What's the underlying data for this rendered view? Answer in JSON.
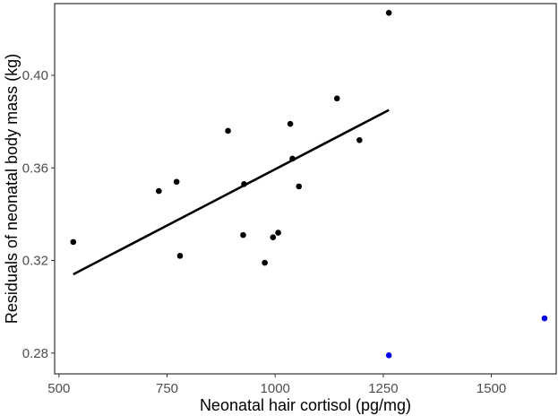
{
  "chart_data": {
    "type": "scatter",
    "title": "",
    "xlabel": "Neonatal hair cortisol (pg/mg)",
    "ylabel": "Residuals of neonatal body mass (kg)",
    "xlim": [
      490,
      1650
    ],
    "ylim": [
      0.271,
      0.431
    ],
    "grid": false,
    "legend": "none",
    "x_ticks": [
      500,
      750,
      1000,
      1250,
      1500
    ],
    "x_tick_labels": [
      "500",
      "750",
      "1000",
      "1250",
      "1500"
    ],
    "y_ticks": [
      0.28,
      0.32,
      0.36,
      0.4
    ],
    "y_tick_labels": [
      "0.28",
      "0.32",
      "0.36",
      "0.40"
    ],
    "series": [
      {
        "color": "#000000",
        "points": [
          {
            "x": 533,
            "y": 0.328
          },
          {
            "x": 731,
            "y": 0.35
          },
          {
            "x": 772,
            "y": 0.354
          },
          {
            "x": 780,
            "y": 0.322
          },
          {
            "x": 891,
            "y": 0.376
          },
          {
            "x": 926,
            "y": 0.331
          },
          {
            "x": 928,
            "y": 0.353
          },
          {
            "x": 976,
            "y": 0.319
          },
          {
            "x": 995,
            "y": 0.33
          },
          {
            "x": 1007,
            "y": 0.332
          },
          {
            "x": 1035,
            "y": 0.379
          },
          {
            "x": 1040,
            "y": 0.364
          },
          {
            "x": 1055,
            "y": 0.352
          },
          {
            "x": 1143,
            "y": 0.39
          },
          {
            "x": 1195,
            "y": 0.372
          },
          {
            "x": 1263,
            "y": 0.427
          }
        ]
      },
      {
        "color": "#0000ee",
        "points": [
          {
            "x": 1263,
            "y": 0.279
          },
          {
            "x": 1623,
            "y": 0.295
          }
        ]
      }
    ],
    "fit_line": {
      "color": "#000000",
      "x": [
        533,
        1263
      ],
      "y": [
        0.314,
        0.385
      ]
    }
  }
}
